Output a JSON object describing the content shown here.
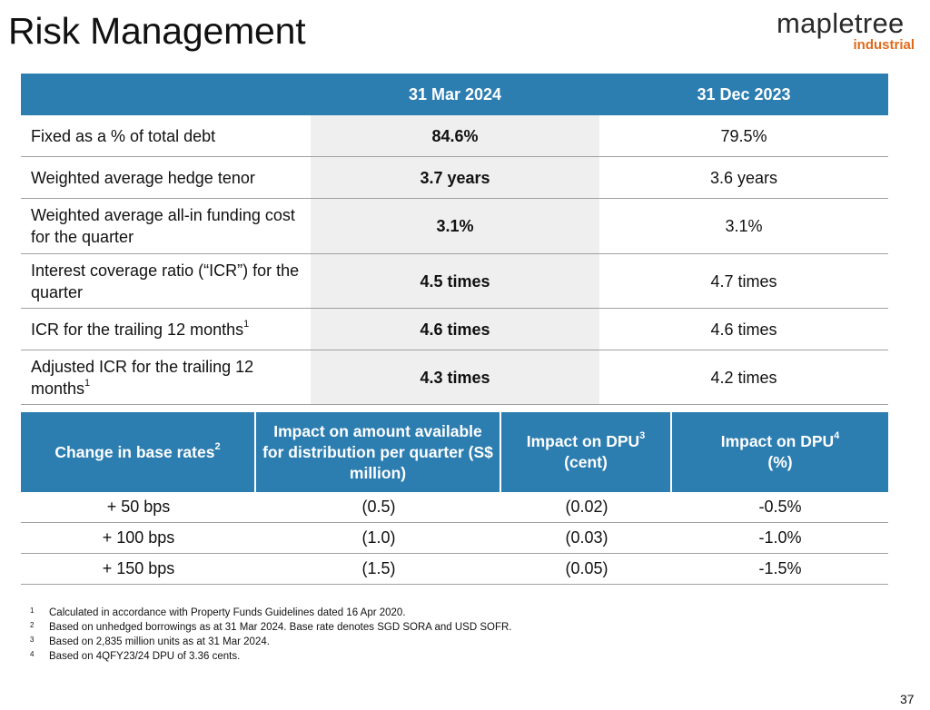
{
  "page": {
    "title": "Risk Management",
    "page_number": "37"
  },
  "logo": {
    "word": "mapletree",
    "sub": "industrial",
    "accent_color": "#e06a1b"
  },
  "colors": {
    "header_blue": "#2c7db0",
    "highlight_col": "#efefef"
  },
  "table1": {
    "headers": [
      "",
      "31 Mar 2024",
      "31 Dec 2023"
    ],
    "rows": [
      {
        "label": "Fixed as a % of total debt",
        "sup": "",
        "v1": "84.6%",
        "v2": "79.5%"
      },
      {
        "label": "Weighted average hedge tenor",
        "sup": "",
        "v1": "3.7 years",
        "v2": "3.6 years"
      },
      {
        "label": "Weighted average all-in funding cost for the quarter",
        "sup": "",
        "v1": "3.1%",
        "v2": "3.1%"
      },
      {
        "label": "Interest coverage ratio (“ICR”) for the quarter",
        "sup": "",
        "v1": "4.5 times",
        "v2": "4.7 times"
      },
      {
        "label": "ICR for the trailing 12 months",
        "sup": "1",
        "v1": "4.6 times",
        "v2": "4.6 times"
      },
      {
        "label": "Adjusted ICR for the trailing 12 months",
        "sup": "1",
        "v1": "4.3 times",
        "v2": "4.2 times"
      }
    ]
  },
  "table2": {
    "headers": [
      {
        "text": "Change in base rates",
        "sup": "2"
      },
      {
        "text": "Impact on amount available for distribution per quarter (S$ million)",
        "sup": ""
      },
      {
        "text": "Impact on DPU",
        "sup": "3",
        "line2": "(cent)"
      },
      {
        "text": "Impact on DPU",
        "sup": "4",
        "line2": "(%)"
      }
    ],
    "rows": [
      [
        "+ 50 bps",
        "(0.5)",
        "(0.02)",
        "-0.5%"
      ],
      [
        "+ 100 bps",
        "(1.0)",
        "(0.03)",
        "-1.0%"
      ],
      [
        "+ 150 bps",
        "(1.5)",
        "(0.05)",
        "-1.5%"
      ]
    ]
  },
  "footnotes": [
    {
      "num": "1",
      "text": "Calculated in accordance with Property Funds Guidelines dated 16 Apr 2020."
    },
    {
      "num": "2",
      "text": "Based on unhedged borrowings as at 31 Mar 2024. Base rate denotes SGD SORA and USD SOFR."
    },
    {
      "num": "3",
      "text": "Based on 2,835 million units as at 31 Mar 2024."
    },
    {
      "num": "4",
      "text": "Based on 4QFY23/24 DPU of 3.36 cents."
    }
  ]
}
